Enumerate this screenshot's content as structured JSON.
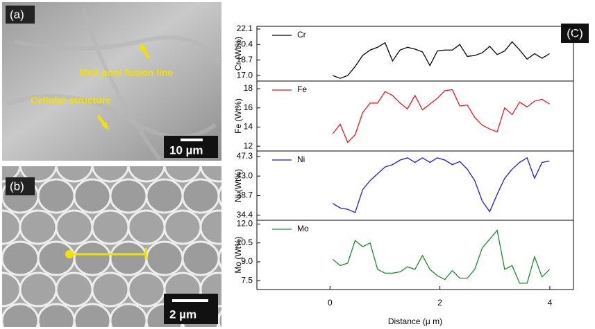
{
  "panels": [
    {
      "label": "(a)",
      "annotations": [
        "Melt pool fusion line",
        "Cellular structure"
      ],
      "scale_bar": "10 µm"
    },
    {
      "label": "(b)",
      "scale_bar": "2 µm"
    }
  ],
  "figure_label": "(C)",
  "chart_data": [
    {
      "type": "line",
      "ylabel": "Cr (Wt%)",
      "x": [
        0.05,
        0.186,
        0.322,
        0.458,
        0.594,
        0.73,
        0.866,
        1.002,
        1.138,
        1.274,
        1.41,
        1.546,
        1.682,
        1.818,
        1.954,
        2.09,
        2.226,
        2.362,
        2.498,
        2.634,
        2.77,
        2.906,
        3.042,
        3.178,
        3.314,
        3.45,
        3.586,
        3.722,
        3.858,
        3.994
      ],
      "series": [
        {
          "name": "Cr",
          "color": "#000000",
          "values": [
            17.0,
            16.7,
            17.0,
            18.0,
            19.2,
            19.8,
            20.1,
            20.6,
            18.6,
            19.8,
            20.1,
            19.9,
            19.6,
            18.1,
            19.7,
            19.8,
            19.8,
            20.4,
            19.1,
            19.2,
            19.5,
            20.2,
            19.3,
            19.7,
            20.7,
            19.8,
            18.8,
            19.4,
            18.9,
            19.4
          ]
        }
      ],
      "xlim": [
        -1.33,
        4.43
      ],
      "ylim": [
        16.4,
        22.4
      ],
      "yticks": [
        {
          "value": 17,
          "label": "17.0"
        },
        18.7,
        20.4,
        22.1
      ]
    },
    {
      "type": "line",
      "ylabel": "Fe (Wt%)",
      "x": [
        0.05,
        0.186,
        0.322,
        0.458,
        0.594,
        0.73,
        0.866,
        1.002,
        1.138,
        1.274,
        1.41,
        1.546,
        1.682,
        1.818,
        1.954,
        2.09,
        2.226,
        2.362,
        2.498,
        2.634,
        2.77,
        2.906,
        3.042,
        3.178,
        3.314,
        3.45,
        3.586,
        3.722,
        3.858,
        3.994
      ],
      "series": [
        {
          "name": "Fe",
          "color": "#e8141b",
          "values": [
            13.3,
            14.3,
            12.4,
            13.2,
            15.5,
            16.5,
            16.5,
            17.7,
            17.3,
            16.5,
            15.9,
            17.3,
            15.8,
            16.4,
            17.0,
            17.8,
            17.9,
            16.2,
            16.3,
            15.0,
            14.2,
            13.8,
            13.5,
            16.0,
            15.3,
            16.6,
            16.1,
            16.7,
            16.9,
            16.4
          ]
        }
      ],
      "xlim": [
        -1.33,
        4.43
      ],
      "ylim": [
        11.5,
        18.8
      ],
      "yticks": [
        12,
        14,
        16,
        18
      ]
    },
    {
      "type": "line",
      "ylabel": "Ni (Wt%)",
      "x": [
        0.05,
        0.186,
        0.322,
        0.458,
        0.594,
        0.73,
        0.866,
        1.002,
        1.138,
        1.274,
        1.41,
        1.546,
        1.682,
        1.818,
        1.954,
        2.09,
        2.226,
        2.362,
        2.498,
        2.634,
        2.77,
        2.906,
        3.042,
        3.178,
        3.314,
        3.45,
        3.586,
        3.722,
        3.858,
        3.994
      ],
      "series": [
        {
          "name": "Ni",
          "color": "#1a1ac8",
          "values": [
            37.0,
            36.0,
            35.7,
            35.0,
            40.0,
            42.0,
            43.5,
            45.0,
            45.5,
            46.5,
            47.0,
            46.0,
            47.0,
            46.0,
            47.0,
            46.5,
            45.5,
            46.2,
            44.5,
            42.0,
            37.5,
            35.2,
            39.0,
            42.5,
            44.5,
            46.0,
            47.0,
            42.5,
            46.0,
            46.3
          ]
        }
      ],
      "xlim": [
        -1.33,
        4.43
      ],
      "ylim": [
        33.3,
        48.5
      ],
      "yticks": [
        34.4,
        38.7,
        {
          "value": 43,
          "label": "43.0"
        },
        47.3
      ]
    },
    {
      "type": "line",
      "ylabel": "Mo (Wt%)",
      "xlabel": "Distance (μ m)",
      "x": [
        0.05,
        0.186,
        0.322,
        0.458,
        0.594,
        0.73,
        0.866,
        1.002,
        1.138,
        1.274,
        1.41,
        1.546,
        1.682,
        1.818,
        1.954,
        2.09,
        2.226,
        2.362,
        2.498,
        2.634,
        2.77,
        2.906,
        3.042,
        3.178,
        3.314,
        3.45,
        3.586,
        3.722,
        3.858,
        3.994
      ],
      "series": [
        {
          "name": "Mo",
          "color": "#1a8a2a",
          "values": [
            9.2,
            8.7,
            8.9,
            10.7,
            10.2,
            10.5,
            8.4,
            8.1,
            8.1,
            8.2,
            8.6,
            8.4,
            9.5,
            8.4,
            7.9,
            7.6,
            8.3,
            7.7,
            7.7,
            8.4,
            10.1,
            10.8,
            11.5,
            8.4,
            8.7,
            7.3,
            7.3,
            9.4,
            7.8,
            8.4
          ]
        }
      ],
      "xlim": [
        -1.33,
        4.43
      ],
      "ylim": [
        6.8,
        12.3
      ],
      "yticks": [
        7.5,
        {
          "value": 9,
          "label": "9.0"
        },
        10.5,
        {
          "value": 12,
          "label": "12.0"
        }
      ],
      "xticks": [
        0,
        2,
        4
      ]
    }
  ]
}
